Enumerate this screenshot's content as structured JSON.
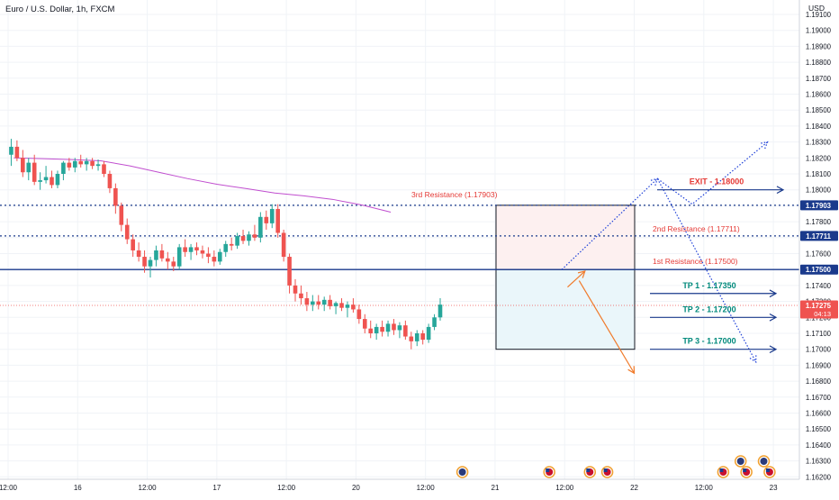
{
  "title": "Euro / U.S. Dollar, 1h, FXCM",
  "currency": "USD",
  "price_axis": {
    "min": 1.162,
    "max": 1.192,
    "labels": [
      "1.19100",
      "1.19000",
      "1.18900",
      "1.18800",
      "1.18700",
      "1.18600",
      "1.18500",
      "1.18400",
      "1.18300",
      "1.18200",
      "1.18100",
      "1.18000",
      "1.17900",
      "1.17800",
      "1.17700",
      "1.17600",
      "1.17500",
      "1.17400",
      "1.17300",
      "1.17200",
      "1.17100",
      "1.17000",
      "1.16900",
      "1.16800",
      "1.16700",
      "1.16600",
      "1.16500",
      "1.16400",
      "1.16300",
      "1.16200"
    ],
    "label_values": [
      1.191,
      1.19,
      1.189,
      1.188,
      1.187,
      1.186,
      1.185,
      1.184,
      1.183,
      1.182,
      1.181,
      1.18,
      1.179,
      1.178,
      1.177,
      1.176,
      1.175,
      1.174,
      1.173,
      1.172,
      1.171,
      1.17,
      1.169,
      1.168,
      1.167,
      1.166,
      1.165,
      1.164,
      1.163,
      1.162
    ]
  },
  "time_axis": {
    "labels": [
      "12:00",
      "16",
      "12:00",
      "17",
      "12:00",
      "20",
      "12:00",
      "21",
      "12:00",
      "22",
      "12:00",
      "23"
    ],
    "label_hours": [
      0,
      12,
      24,
      36,
      48,
      60,
      72,
      84,
      96,
      108,
      120,
      132
    ]
  },
  "price_tags": [
    {
      "text": "1.17903",
      "value": 1.17903,
      "bg": "#1a3a8c",
      "fg": "#ffffff"
    },
    {
      "text": "1.17711",
      "value": 1.17711,
      "bg": "#1a3a8c",
      "fg": "#ffffff"
    },
    {
      "text": "1.17500",
      "value": 1.175,
      "bg": "#1a3a8c",
      "fg": "#ffffff"
    },
    {
      "text": "1.17275",
      "value": 1.17275,
      "bg": "#ef5350",
      "fg": "#ffffff",
      "sub": "04:13"
    }
  ],
  "resistance_levels": [
    {
      "label": "3rd Resistance (1.17903)",
      "value": 1.17903,
      "style": "dotted"
    },
    {
      "label": "2nd Resistance (1.17711)",
      "value": 1.17711,
      "style": "dotted"
    },
    {
      "label": "1st Resistance (1.17500)",
      "value": 1.175,
      "style": "solid"
    }
  ],
  "targets": [
    {
      "label": "EXIT - 1.18000",
      "value": 1.18,
      "color": "#e53935"
    },
    {
      "label": "TP 1 - 1.17350",
      "value": 1.1735,
      "color": "#00897b"
    },
    {
      "label": "TP 2 - 1.17200",
      "value": 1.172,
      "color": "#00897b"
    },
    {
      "label": "TP 3 - 1.17000",
      "value": 1.17,
      "color": "#00897b"
    }
  ],
  "current_price_line": 1.17275,
  "chart_data": {
    "type": "candlestick",
    "title": "Euro / U.S. Dollar, 1h, FXCM",
    "ylabel": "USD",
    "ylim": [
      1.162,
      1.192
    ],
    "candles": [
      [
        1.1822,
        1.1832,
        1.1815,
        1.1827
      ],
      [
        1.1827,
        1.1831,
        1.1818,
        1.182
      ],
      [
        1.182,
        1.1825,
        1.1808,
        1.1811
      ],
      [
        1.1811,
        1.182,
        1.1806,
        1.1817
      ],
      [
        1.1817,
        1.1822,
        1.1803,
        1.1805
      ],
      [
        1.1805,
        1.1811,
        1.18,
        1.1806
      ],
      [
        1.1806,
        1.1815,
        1.1804,
        1.1808
      ],
      [
        1.1808,
        1.1812,
        1.1801,
        1.1803
      ],
      [
        1.1803,
        1.1812,
        1.1801,
        1.181
      ],
      [
        1.181,
        1.1818,
        1.1806,
        1.1817
      ],
      [
        1.1817,
        1.182,
        1.1812,
        1.1814
      ],
      [
        1.1814,
        1.182,
        1.1811,
        1.1818
      ],
      [
        1.1818,
        1.1822,
        1.1814,
        1.1816
      ],
      [
        1.1816,
        1.182,
        1.1812,
        1.1818
      ],
      [
        1.1818,
        1.182,
        1.1813,
        1.1815
      ],
      [
        1.1815,
        1.1819,
        1.1812,
        1.1816
      ],
      [
        1.1816,
        1.1818,
        1.1808,
        1.181
      ],
      [
        1.181,
        1.1812,
        1.1798,
        1.1801
      ],
      [
        1.1801,
        1.1804,
        1.1785,
        1.179
      ],
      [
        1.179,
        1.1792,
        1.1774,
        1.1778
      ],
      [
        1.1778,
        1.1782,
        1.1766,
        1.1769
      ],
      [
        1.1769,
        1.1772,
        1.1758,
        1.1762
      ],
      [
        1.1762,
        1.1767,
        1.1755,
        1.1758
      ],
      [
        1.1758,
        1.1762,
        1.1748,
        1.1752
      ],
      [
        1.1752,
        1.1758,
        1.1745,
        1.1756
      ],
      [
        1.1756,
        1.1765,
        1.1752,
        1.1762
      ],
      [
        1.1762,
        1.1766,
        1.1755,
        1.1757
      ],
      [
        1.1757,
        1.1761,
        1.175,
        1.1755
      ],
      [
        1.1755,
        1.1758,
        1.1749,
        1.1752
      ],
      [
        1.1752,
        1.1766,
        1.175,
        1.1764
      ],
      [
        1.1764,
        1.1769,
        1.1758,
        1.1761
      ],
      [
        1.1761,
        1.1766,
        1.1756,
        1.1764
      ],
      [
        1.1764,
        1.1767,
        1.1759,
        1.1762
      ],
      [
        1.1762,
        1.1765,
        1.1757,
        1.176
      ],
      [
        1.176,
        1.1764,
        1.1754,
        1.1758
      ],
      [
        1.1758,
        1.1762,
        1.1752,
        1.1755
      ],
      [
        1.1755,
        1.1763,
        1.1753,
        1.1761
      ],
      [
        1.1761,
        1.1768,
        1.1758,
        1.1766
      ],
      [
        1.1766,
        1.177,
        1.1762,
        1.1765
      ],
      [
        1.1765,
        1.1773,
        1.1763,
        1.1771
      ],
      [
        1.1771,
        1.1775,
        1.1766,
        1.1768
      ],
      [
        1.1768,
        1.1774,
        1.1765,
        1.1772
      ],
      [
        1.1772,
        1.1778,
        1.1768,
        1.177
      ],
      [
        1.177,
        1.1786,
        1.1767,
        1.1783
      ],
      [
        1.1783,
        1.1787,
        1.1775,
        1.1779
      ],
      [
        1.1779,
        1.1791,
        1.1776,
        1.1788
      ],
      [
        1.1788,
        1.1791,
        1.177,
        1.1773
      ],
      [
        1.1773,
        1.1775,
        1.1755,
        1.1758
      ],
      [
        1.1758,
        1.176,
        1.1735,
        1.174
      ],
      [
        1.174,
        1.1744,
        1.173,
        1.1735
      ],
      [
        1.1735,
        1.174,
        1.1728,
        1.1732
      ],
      [
        1.1732,
        1.1736,
        1.1724,
        1.1728
      ],
      [
        1.1728,
        1.1734,
        1.1724,
        1.173
      ],
      [
        1.173,
        1.1734,
        1.1725,
        1.1728
      ],
      [
        1.1728,
        1.1733,
        1.1724,
        1.1731
      ],
      [
        1.1731,
        1.1734,
        1.1725,
        1.1727
      ],
      [
        1.1727,
        1.173,
        1.1722,
        1.1729
      ],
      [
        1.1729,
        1.1732,
        1.1724,
        1.1726
      ],
      [
        1.1726,
        1.173,
        1.172,
        1.1728
      ],
      [
        1.1728,
        1.1732,
        1.1723,
        1.1725
      ],
      [
        1.1725,
        1.1728,
        1.1716,
        1.1719
      ],
      [
        1.1719,
        1.1722,
        1.171,
        1.1713
      ],
      [
        1.1713,
        1.1718,
        1.1707,
        1.171
      ],
      [
        1.171,
        1.1716,
        1.1706,
        1.1714
      ],
      [
        1.1714,
        1.1718,
        1.1708,
        1.1711
      ],
      [
        1.1711,
        1.1718,
        1.1708,
        1.1716
      ],
      [
        1.1716,
        1.1719,
        1.1709,
        1.1712
      ],
      [
        1.1712,
        1.1717,
        1.1707,
        1.1715
      ],
      [
        1.1715,
        1.1718,
        1.1706,
        1.1708
      ],
      [
        1.1708,
        1.1711,
        1.17,
        1.1705
      ],
      [
        1.1705,
        1.1712,
        1.1702,
        1.171
      ],
      [
        1.171,
        1.1712,
        1.1703,
        1.1706
      ],
      [
        1.1706,
        1.1716,
        1.1704,
        1.1714
      ],
      [
        1.1714,
        1.1722,
        1.1712,
        1.172
      ],
      [
        1.172,
        1.1732,
        1.1718,
        1.1728
      ]
    ],
    "moving_average": [
      [
        1,
        1.182
      ],
      [
        6,
        1.18195
      ],
      [
        11,
        1.1819
      ],
      [
        16,
        1.18182
      ],
      [
        21,
        1.1815
      ],
      [
        26,
        1.1811
      ],
      [
        31,
        1.1807
      ],
      [
        36,
        1.18035
      ],
      [
        41,
        1.18008
      ],
      [
        46,
        1.1798
      ],
      [
        51,
        1.17962
      ],
      [
        56,
        1.1794
      ],
      [
        61,
        1.17905
      ],
      [
        66,
        1.1786
      ]
    ],
    "projections": {
      "orange_down": [
        [
          98.5,
          1.1743
        ],
        [
          108,
          1.1685
        ]
      ],
      "blue_up_1": [
        [
          95.5,
          1.175
        ],
        [
          112,
          1.1807
        ],
        [
          118,
          1.1791
        ],
        [
          131,
          1.183
        ]
      ],
      "blue_down": [
        [
          112,
          1.1807
        ],
        [
          129,
          1.1692
        ]
      ]
    },
    "boxes": [
      {
        "name": "upper-resistance-box",
        "from_hour": 95,
        "to_hour": 124,
        "top": 1.17903,
        "bottom": 1.175,
        "fill": "#fdf0f0"
      },
      {
        "name": "lower-target-box",
        "from_hour": 95,
        "to_hour": 124,
        "top": 1.175,
        "bottom": 1.17,
        "fill": "#eaf6fa"
      }
    ],
    "event_icons": [
      {
        "hour": 90,
        "kind": "globe"
      },
      {
        "hour": 105,
        "kind": "us-flag"
      },
      {
        "hour": 112,
        "kind": "eu-us-flag"
      },
      {
        "hour": 115,
        "kind": "us-flag"
      },
      {
        "hour": 135,
        "kind": "eu-us-flag"
      },
      {
        "hour": 138,
        "kind": "globe"
      },
      {
        "hour": 139,
        "kind": "us-flag"
      },
      {
        "hour": 142,
        "kind": "globe"
      },
      {
        "hour": 143,
        "kind": "eu-us-flag"
      }
    ],
    "colors": {
      "up": "#26a69a",
      "down": "#ef5350",
      "ma": "#c04ecf",
      "level": "#1a3a8c",
      "projection_blue": "#1e40d8",
      "projection_orange": "#f07a2a",
      "resistance_text": "#e53935",
      "grid": "#f0f3f7"
    }
  }
}
